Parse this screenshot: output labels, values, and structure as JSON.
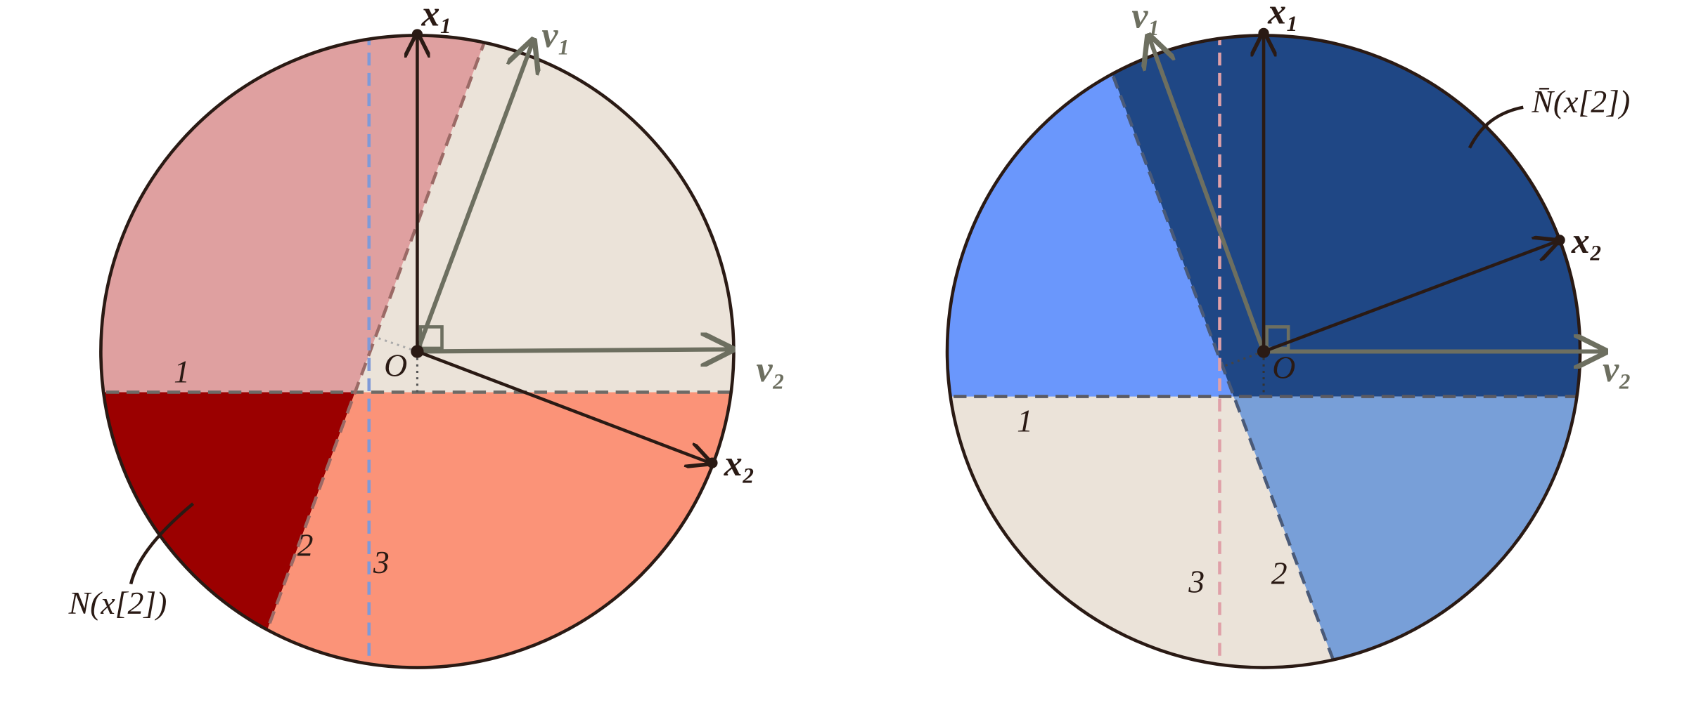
{
  "left": {
    "labels": {
      "x1": "x₁",
      "v1": "v₁",
      "v2": "v₂",
      "x2": "x₂",
      "origin": "O",
      "region1": "1",
      "region2": "2",
      "region3": "3",
      "set": "N(x[2])"
    }
  },
  "right": {
    "labels": {
      "x1": "x₁",
      "v1": "v₁",
      "v2": "v₂",
      "x2": "x₂",
      "origin": "O",
      "region1": "1",
      "region2": "2",
      "region3": "3",
      "set": "N̄(x[2])"
    }
  }
}
